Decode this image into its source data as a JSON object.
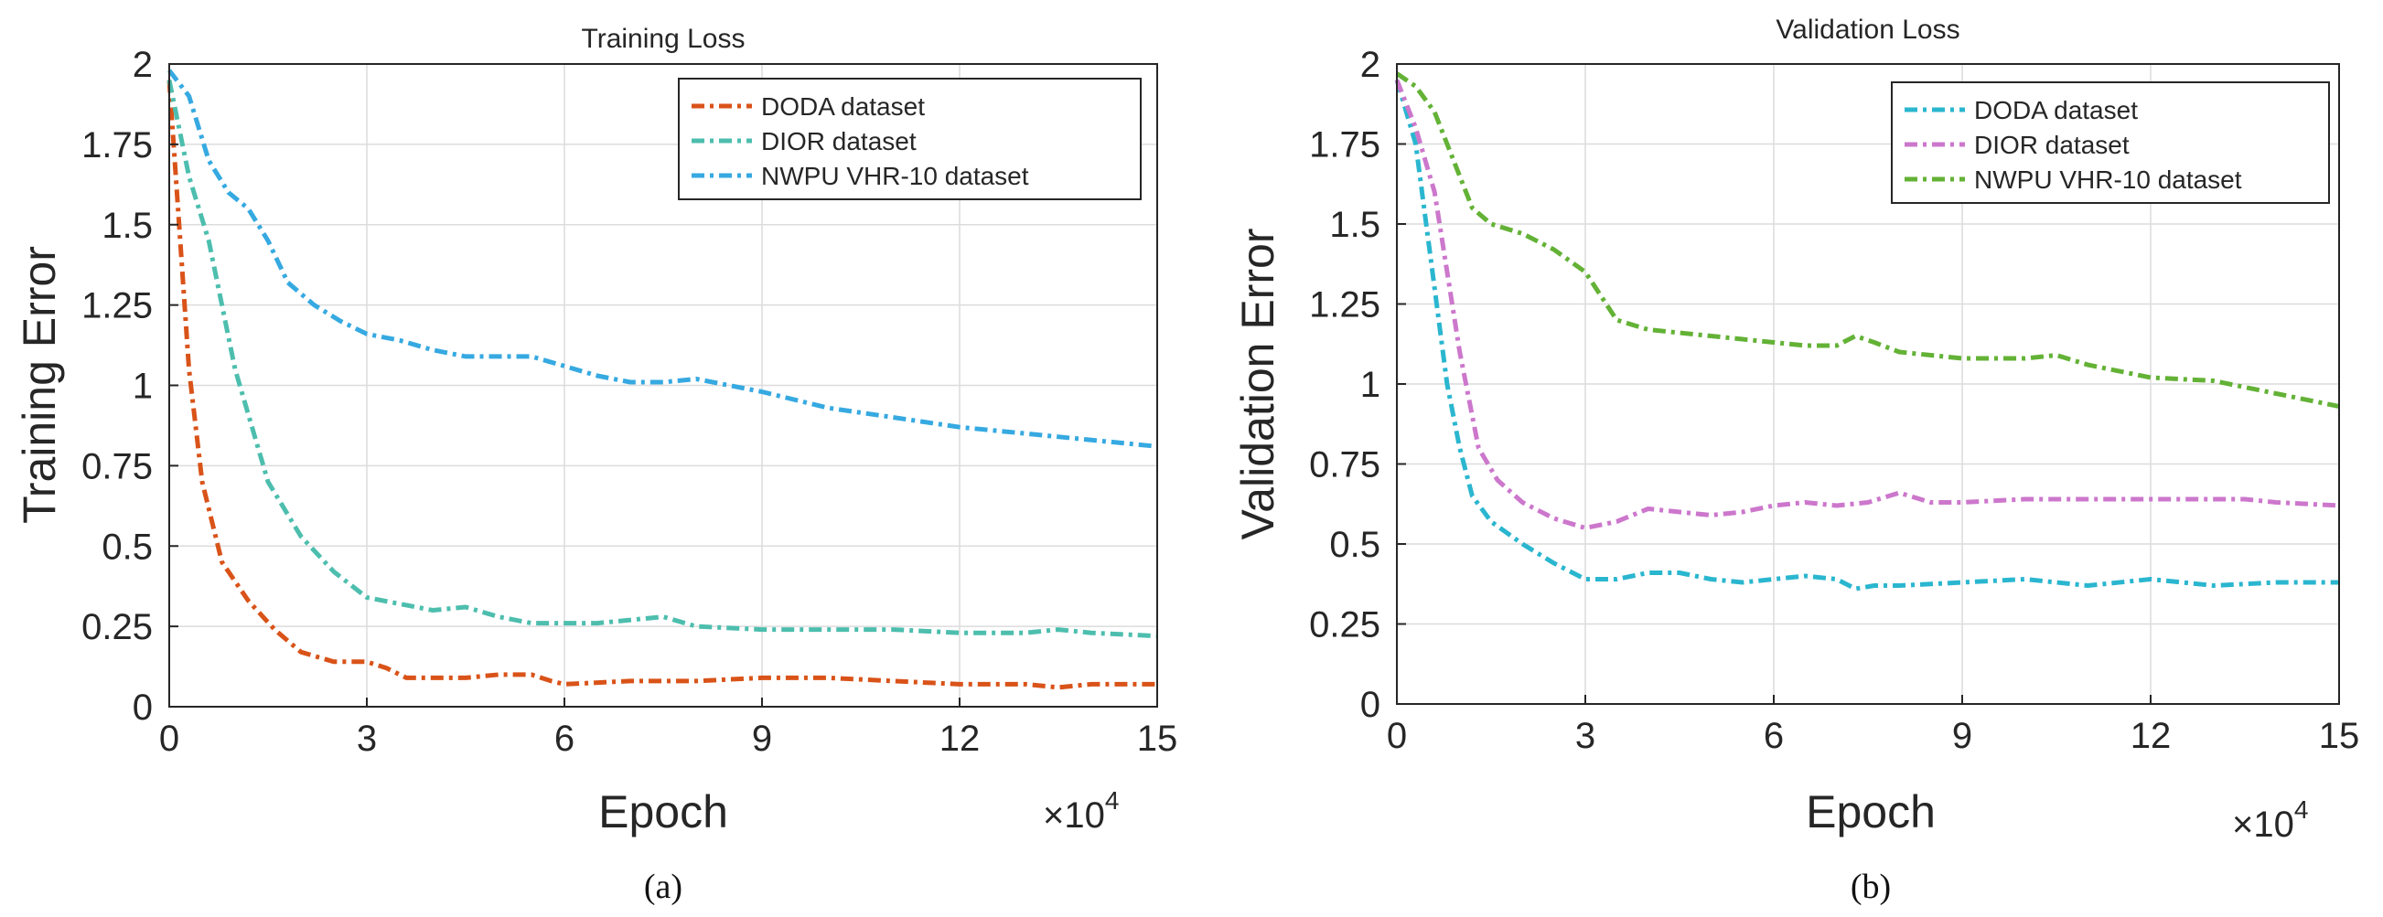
{
  "chart_data": [
    {
      "type": "line",
      "panel": "(a)",
      "title": "Training Loss",
      "xlabel": "Epoch",
      "ylabel": "Training Error",
      "x_multiplier": "×10",
      "x_multiplier_exp": "4",
      "xlim": [
        0,
        15
      ],
      "ylim": [
        0,
        2
      ],
      "xticks": [
        "0",
        "3",
        "6",
        "9",
        "12",
        "15"
      ],
      "yticks": [
        "0",
        "0.25",
        "0.5",
        "0.75",
        "1",
        "1.25",
        "1.5",
        "1.75",
        "2"
      ],
      "grid": true,
      "legend_position": "top-right",
      "series": [
        {
          "name": "DODA dataset",
          "color": "#d95319",
          "x": [
            0,
            0.3,
            0.5,
            0.8,
            1.2,
            1.6,
            2.0,
            2.5,
            3.0,
            3.3,
            3.6,
            4.0,
            4.5,
            5.0,
            5.5,
            5.8,
            6.0,
            7.0,
            8.0,
            9.0,
            10.0,
            11.0,
            12.0,
            13.0,
            13.5,
            14.0,
            15.0
          ],
          "y": [
            1.95,
            1.05,
            0.7,
            0.45,
            0.33,
            0.24,
            0.17,
            0.14,
            0.14,
            0.12,
            0.09,
            0.09,
            0.09,
            0.1,
            0.1,
            0.08,
            0.07,
            0.08,
            0.08,
            0.09,
            0.09,
            0.08,
            0.07,
            0.07,
            0.06,
            0.07,
            0.07
          ]
        },
        {
          "name": "DIOR dataset",
          "color": "#4dbeae",
          "x": [
            0,
            0.3,
            0.6,
            1.0,
            1.5,
            2.0,
            2.5,
            3.0,
            3.5,
            4.0,
            4.5,
            5.0,
            5.5,
            6.0,
            6.5,
            7.0,
            7.5,
            8.0,
            9.0,
            10.0,
            11.0,
            12.0,
            13.0,
            13.5,
            14.0,
            15.0
          ],
          "y": [
            1.95,
            1.65,
            1.45,
            1.05,
            0.7,
            0.53,
            0.42,
            0.34,
            0.32,
            0.3,
            0.31,
            0.28,
            0.26,
            0.26,
            0.26,
            0.27,
            0.28,
            0.25,
            0.24,
            0.24,
            0.24,
            0.23,
            0.23,
            0.24,
            0.23,
            0.22
          ]
        },
        {
          "name": "NWPU VHR-10 dataset",
          "color": "#36a9e1",
          "x": [
            0,
            0.3,
            0.6,
            0.9,
            1.2,
            1.5,
            1.8,
            2.2,
            2.6,
            3.0,
            3.5,
            4.0,
            4.5,
            5.0,
            5.5,
            6.0,
            6.5,
            7.0,
            7.5,
            8.0,
            8.5,
            9.0,
            10.0,
            11.0,
            12.0,
            13.0,
            14.0,
            15.0
          ],
          "y": [
            1.98,
            1.9,
            1.7,
            1.6,
            1.55,
            1.45,
            1.32,
            1.25,
            1.2,
            1.16,
            1.14,
            1.11,
            1.09,
            1.09,
            1.09,
            1.06,
            1.03,
            1.01,
            1.01,
            1.02,
            1.0,
            0.98,
            0.93,
            0.9,
            0.87,
            0.85,
            0.83,
            0.81
          ]
        }
      ]
    },
    {
      "type": "line",
      "panel": "(b)",
      "title": "Validation Loss",
      "xlabel": "Epoch",
      "ylabel": "Validation Error",
      "x_multiplier": "×10",
      "x_multiplier_exp": "4",
      "xlim": [
        0,
        15
      ],
      "ylim": [
        0,
        2
      ],
      "xticks": [
        "0",
        "3",
        "6",
        "9",
        "12",
        "15"
      ],
      "yticks": [
        "0",
        "0.25",
        "0.5",
        "0.75",
        "1",
        "1.25",
        "1.5",
        "1.75",
        "2"
      ],
      "grid": true,
      "legend_position": "top-right",
      "series": [
        {
          "name": "DODA dataset",
          "color": "#2ab6cf",
          "x": [
            0,
            0.3,
            0.6,
            0.8,
            1.0,
            1.2,
            1.5,
            2.0,
            2.5,
            3.0,
            3.5,
            4.0,
            4.5,
            5.0,
            5.5,
            6.0,
            6.5,
            7.0,
            7.3,
            7.6,
            8.0,
            9.0,
            10.0,
            11.0,
            12.0,
            13.0,
            14.0,
            15.0
          ],
          "y": [
            1.95,
            1.75,
            1.3,
            1.0,
            0.8,
            0.65,
            0.57,
            0.5,
            0.44,
            0.39,
            0.39,
            0.41,
            0.41,
            0.39,
            0.38,
            0.39,
            0.4,
            0.39,
            0.36,
            0.37,
            0.37,
            0.38,
            0.39,
            0.37,
            0.39,
            0.37,
            0.38,
            0.38
          ]
        },
        {
          "name": "DIOR dataset",
          "color": "#cc77cc",
          "x": [
            0,
            0.3,
            0.6,
            1.0,
            1.3,
            1.6,
            2.0,
            2.5,
            3.0,
            3.5,
            4.0,
            4.5,
            5.0,
            5.5,
            6.0,
            6.5,
            7.0,
            7.5,
            8.0,
            8.5,
            9.0,
            10.0,
            11.0,
            12.0,
            13.0,
            13.5,
            14.0,
            15.0
          ],
          "y": [
            1.95,
            1.8,
            1.6,
            1.1,
            0.8,
            0.7,
            0.63,
            0.58,
            0.55,
            0.57,
            0.61,
            0.6,
            0.59,
            0.6,
            0.62,
            0.63,
            0.62,
            0.63,
            0.66,
            0.63,
            0.63,
            0.64,
            0.64,
            0.64,
            0.64,
            0.64,
            0.63,
            0.62
          ]
        },
        {
          "name": "NWPU VHR-10 dataset",
          "color": "#63b236",
          "x": [
            0,
            0.3,
            0.6,
            0.9,
            1.2,
            1.5,
            2.0,
            2.5,
            3.0,
            3.5,
            4.0,
            4.5,
            5.0,
            5.5,
            6.0,
            6.5,
            7.0,
            7.3,
            7.6,
            8.0,
            8.5,
            9.0,
            9.5,
            10.0,
            10.5,
            11.0,
            12.0,
            13.0,
            14.0,
            15.0
          ],
          "y": [
            1.97,
            1.93,
            1.85,
            1.7,
            1.55,
            1.5,
            1.47,
            1.42,
            1.35,
            1.2,
            1.17,
            1.16,
            1.15,
            1.14,
            1.13,
            1.12,
            1.12,
            1.15,
            1.13,
            1.1,
            1.09,
            1.08,
            1.08,
            1.08,
            1.09,
            1.06,
            1.02,
            1.01,
            0.97,
            0.93
          ]
        }
      ]
    }
  ]
}
